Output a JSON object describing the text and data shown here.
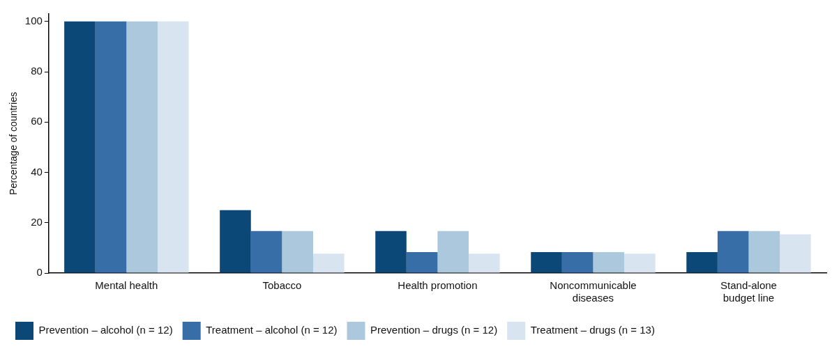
{
  "chart_data": {
    "type": "bar",
    "ylabel": "Percentage of countries",
    "categories": [
      "Mental health",
      "Tobacco",
      "Health promotion",
      "Noncommunicable diseases",
      "Stand-alone budget line"
    ],
    "series": [
      {
        "name": "Prevention – alcohol (n = 12)",
        "color": "#0b4877",
        "values": [
          100,
          25,
          16.7,
          8.3,
          8.3
        ]
      },
      {
        "name": "Treatment – alcohol (n = 12)",
        "color": "#386ea7",
        "values": [
          100,
          16.7,
          8.3,
          8.3,
          16.7
        ]
      },
      {
        "name": "Prevention – drugs (n = 12)",
        "color": "#abc8dd",
        "values": [
          100,
          16.7,
          16.7,
          8.3,
          16.7
        ]
      },
      {
        "name": "Treatment – drugs (n = 13)",
        "color": "#d8e4ef",
        "values": [
          100,
          7.7,
          7.7,
          7.7,
          15.4
        ]
      }
    ],
    "ylim": [
      0,
      103
    ],
    "yticks": [
      0,
      20,
      40,
      60,
      80,
      100
    ],
    "grid": false,
    "legend": "bottom"
  }
}
